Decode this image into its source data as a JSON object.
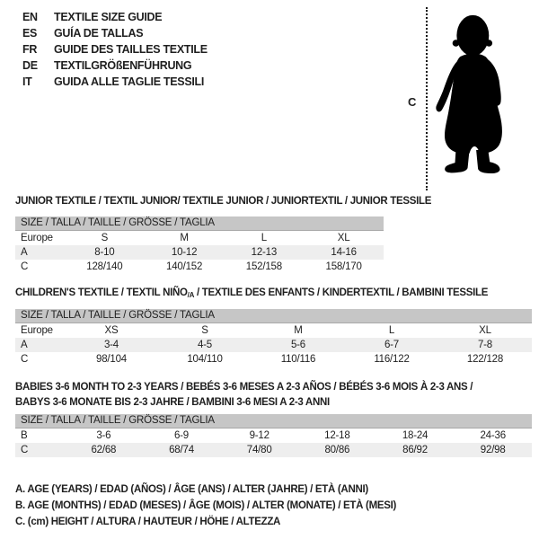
{
  "colors": {
    "text": "#1f1f1f",
    "table_header_bg": "#c6c6c6",
    "shaded_row_bg": "#eeeeee",
    "silhouette": "#000000"
  },
  "language_guide": {
    "items": [
      {
        "code": "EN",
        "label": "TEXTILE SIZE GUIDE"
      },
      {
        "code": "ES",
        "label": "GUÍA DE TALLAS"
      },
      {
        "code": "FR",
        "label": "GUIDE DES TAILLES TEXTILE"
      },
      {
        "code": "DE",
        "label": "TEXTILGRÖßENFÜHRUNG"
      },
      {
        "code": "IT",
        "label": "GUIDA ALLE TAGLIE TESSILI"
      }
    ]
  },
  "figure": {
    "measure_label": "C"
  },
  "sections": [
    {
      "title": "JUNIOR TEXTILE / TEXTIL JUNIOR/ TEXTILE JUNIOR / JUNIORTEXTIL / JUNIOR TESSILE",
      "table": {
        "header": "SIZE / TALLA / TAILLE / GRÖSSE / TAGLIA",
        "rows": [
          {
            "label": "Europe",
            "values": [
              "S",
              "M",
              "L",
              "XL"
            ],
            "shaded": false
          },
          {
            "label": "A",
            "values": [
              "8-10",
              "10-12",
              "12-13",
              "14-16"
            ],
            "shaded": true
          },
          {
            "label": "C",
            "values": [
              "128/140",
              "140/152",
              "152/158",
              "158/170"
            ],
            "shaded": false
          }
        ]
      }
    },
    {
      "title": "CHILDREN'S TEXTILE / TEXTIL NIÑO",
      "title_sub": "/A",
      "title_rest": " / TEXTILE DES ENFANTS / KINDERTEXTIL / BAMBINI TESSILE",
      "table": {
        "header": "SIZE / TALLA / TAILLE / GRÖSSE / TAGLIA",
        "rows": [
          {
            "label": "Europe",
            "values": [
              "XS",
              "S",
              "M",
              "L",
              "XL"
            ],
            "shaded": false
          },
          {
            "label": "A",
            "values": [
              "3-4",
              "4-5",
              "5-6",
              "6-7",
              "7-8"
            ],
            "shaded": true
          },
          {
            "label": "C",
            "values": [
              "98/104",
              "104/110",
              "110/116",
              "116/122",
              "122/128"
            ],
            "shaded": false
          }
        ]
      }
    },
    {
      "title": "BABIES 3-6 MONTH TO 2-3 YEARS / BEBÉS 3-6 MESES A 2-3 AÑOS / BÉBÉS 3-6 MOIS À 2-3 ANS /",
      "title2": "BABYS 3-6 MONATE BIS 2-3 JAHRE / BAMBINI 3-6 MESI A 2-3 ANNI",
      "table": {
        "header": "SIZE / TALLA / TAILLE / GRÖSSE / TAGLIA",
        "rows": [
          {
            "label": "B",
            "values": [
              "3-6",
              "6-9",
              "9-12",
              "12-18",
              "18-24",
              "24-36"
            ],
            "shaded": false
          },
          {
            "label": "C",
            "values": [
              "62/68",
              "68/74",
              "74/80",
              "80/86",
              "86/92",
              "92/98"
            ],
            "shaded": true
          }
        ]
      }
    }
  ],
  "legend": {
    "items": [
      "A. AGE (YEARS) / EDAD (AÑOS) / ÂGE (ANS) / ALTER (JAHRE) / ETÀ (ANNI)",
      "B. AGE (MONTHS) / EDAD (MESES) / ÂGE (MOIS) / ALTER (MONATE) / ETÀ (MESI)",
      "C. (cm) HEIGHT / ALTURA / HAUTEUR / HÖHE / ALTEZZA"
    ]
  }
}
